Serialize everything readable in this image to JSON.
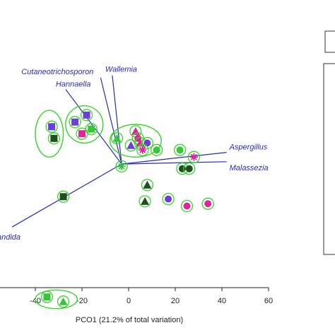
{
  "chart_data": {
    "type": "scatter",
    "title": "",
    "xlabel": "PCO1 (21.2% of total variation)",
    "ylabel": "",
    "xlim": [
      -50,
      60
    ],
    "ylim": [
      -80,
      38
    ],
    "xticks": [
      -40,
      -20,
      0,
      20,
      40,
      60
    ],
    "grid": false,
    "colors": {
      "green": "#35c63a",
      "dark_green": "#1f4f1f",
      "purple": "#6b3fd3",
      "magenta": "#e0259a",
      "vector": "#2a2ab8",
      "ring": "#39d42a"
    },
    "vectors": [
      {
        "label": "Cutaneotrichosporon",
        "x": -12,
        "y": 30
      },
      {
        "label": "Wallemia",
        "x": -7,
        "y": 31
      },
      {
        "label": "Hannaella",
        "x": -27,
        "y": 25
      },
      {
        "label": "Aspergillus",
        "x": 42,
        "y": -2
      },
      {
        "label": "Malassezia",
        "x": 42,
        "y": -6
      },
      {
        "label": "Candida",
        "x": -50,
        "y": -34
      }
    ],
    "points": [
      {
        "x": -23,
        "y": 11,
        "shape": "square",
        "color": "purple"
      },
      {
        "x": -18,
        "y": 14,
        "shape": "square",
        "color": "purple"
      },
      {
        "x": -16,
        "y": 8,
        "shape": "square",
        "color": "green"
      },
      {
        "x": -20,
        "y": 6,
        "shape": "square",
        "color": "magenta"
      },
      {
        "x": -33,
        "y": 9,
        "shape": "square",
        "color": "purple"
      },
      {
        "x": -32,
        "y": 4,
        "shape": "square",
        "color": "dark_green"
      },
      {
        "x": -5,
        "y": 4,
        "shape": "triangle",
        "color": "green"
      },
      {
        "x": 3,
        "y": 7,
        "shape": "triangle",
        "color": "magenta"
      },
      {
        "x": 4,
        "y": 4,
        "shape": "circle",
        "color": "magenta"
      },
      {
        "x": 1,
        "y": 1,
        "shape": "triangle",
        "color": "purple"
      },
      {
        "x": 5,
        "y": 2,
        "shape": "triangle",
        "color": "magenta"
      },
      {
        "x": 8,
        "y": 2,
        "shape": "circle",
        "color": "purple"
      },
      {
        "x": 6,
        "y": -1,
        "shape": "asterisk",
        "color": "magenta"
      },
      {
        "x": 12,
        "y": -1,
        "shape": "circle",
        "color": "green"
      },
      {
        "x": 22,
        "y": -1,
        "shape": "circle",
        "color": "green"
      },
      {
        "x": 28,
        "y": -4,
        "shape": "asterisk",
        "color": "magenta"
      },
      {
        "x": -3,
        "y": -8,
        "shape": "asterisk",
        "color": "green"
      },
      {
        "x": 23,
        "y": -9,
        "shape": "circle",
        "color": "dark_green"
      },
      {
        "x": 26,
        "y": -9,
        "shape": "circle",
        "color": "dark_green"
      },
      {
        "x": 8,
        "y": -16,
        "shape": "triangle",
        "color": "dark_green"
      },
      {
        "x": -28,
        "y": -21,
        "shape": "square",
        "color": "dark_green"
      },
      {
        "x": 7,
        "y": -23,
        "shape": "triangle",
        "color": "dark_green"
      },
      {
        "x": 17,
        "y": -22,
        "shape": "circle",
        "color": "purple"
      },
      {
        "x": 25,
        "y": -25,
        "shape": "circle",
        "color": "magenta"
      },
      {
        "x": 34,
        "y": -24,
        "shape": "circle",
        "color": "magenta"
      },
      {
        "x": -35,
        "y": -64,
        "shape": "square",
        "color": "green"
      },
      {
        "x": -28,
        "y": -66,
        "shape": "triangle",
        "color": "green"
      }
    ],
    "groups": [
      {
        "cx": -34,
        "cy": 6,
        "rx": 6,
        "ry": 10
      },
      {
        "cx": -19,
        "cy": 10,
        "rx": 8,
        "ry": 8
      },
      {
        "cx": 3,
        "cy": 3,
        "rx": 11,
        "ry": 7
      },
      {
        "cx": -31,
        "cy": -65,
        "rx": 9,
        "ry": 4
      }
    ]
  }
}
